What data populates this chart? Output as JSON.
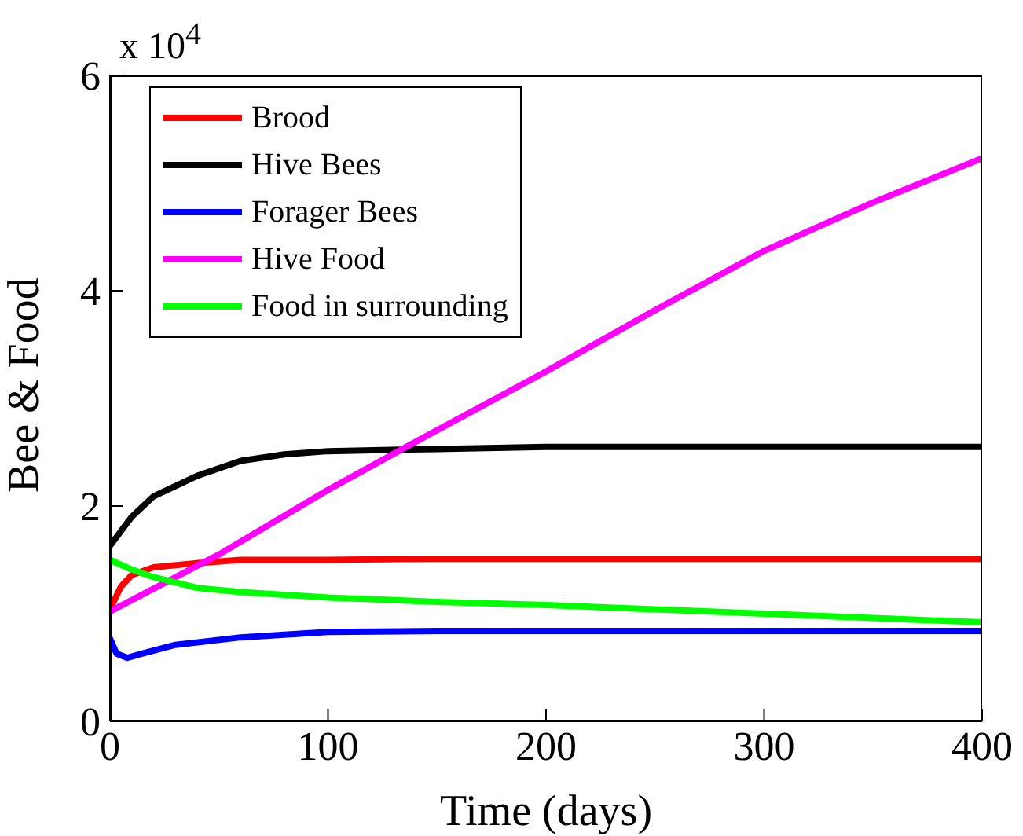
{
  "chart_data": {
    "type": "line",
    "xlabel": "Time (days)",
    "ylabel": "Bee & Food",
    "annotations": [
      "x 10$^{4}$"
    ],
    "xlim": [
      0,
      400
    ],
    "xticks": [
      0,
      100,
      200,
      300,
      400
    ],
    "ylim": [
      0,
      6
    ],
    "yticks": [
      0,
      2,
      4,
      6
    ],
    "grid": false,
    "legend": "top left",
    "marker": "none",
    "line_style": "solid",
    "series": [
      {
        "name": "Brood",
        "color": "#ff0000",
        "x": [
          0,
          5,
          10,
          20,
          40,
          60,
          100,
          150,
          200,
          300,
          400
        ],
        "values": [
          1.04,
          1.25,
          1.36,
          1.43,
          1.47,
          1.5,
          1.5,
          1.51,
          1.51,
          1.51,
          1.51
        ]
      },
      {
        "name": "Hive Bees",
        "color": "#000000",
        "x": [
          0,
          10,
          20,
          40,
          60,
          80,
          100,
          150,
          200,
          300,
          400
        ],
        "values": [
          1.63,
          1.9,
          2.09,
          2.28,
          2.42,
          2.48,
          2.51,
          2.53,
          2.55,
          2.55,
          2.55
        ]
      },
      {
        "name": "Forager Bees",
        "color": "#0000ff",
        "x": [
          0,
          3,
          8,
          15,
          30,
          60,
          100,
          150,
          200,
          300,
          400
        ],
        "values": [
          0.77,
          0.63,
          0.59,
          0.63,
          0.71,
          0.78,
          0.83,
          0.84,
          0.84,
          0.84,
          0.84
        ]
      },
      {
        "name": "Hive Food",
        "color": "#ff00ff",
        "x": [
          0,
          50,
          100,
          135,
          200,
          250,
          300,
          350,
          400
        ],
        "values": [
          1.02,
          1.55,
          2.15,
          2.54,
          3.25,
          3.82,
          4.37,
          4.82,
          5.23
        ]
      },
      {
        "name": "Food in surrounding",
        "color": "#00ff00",
        "x": [
          0,
          10,
          20,
          40,
          60,
          100,
          150,
          200,
          250,
          300,
          350,
          400
        ],
        "values": [
          1.5,
          1.41,
          1.34,
          1.24,
          1.2,
          1.15,
          1.11,
          1.08,
          1.04,
          1.0,
          0.96,
          0.92
        ]
      }
    ]
  }
}
